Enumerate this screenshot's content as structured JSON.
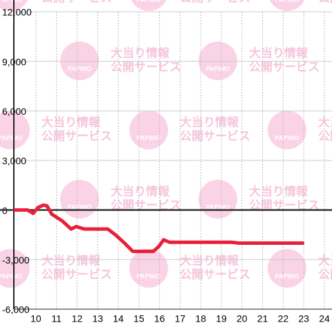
{
  "chart_data": {
    "type": "line",
    "watermark": {
      "lines": [
        "大当り情報",
        "公開サービス"
      ],
      "logo": "PAPIMO"
    },
    "x": [
      8.93,
      9.6,
      9.87,
      10.1,
      10.37,
      10.54,
      10.77,
      11.27,
      11.71,
      11.95,
      12.35,
      13.49,
      13.86,
      14.3,
      14.7,
      15.7,
      15.97,
      16.2,
      16.48,
      19.5,
      19.83,
      23.02
    ],
    "series": [
      {
        "color": "#e8213a",
        "values": [
          0,
          0,
          -200,
          150,
          300,
          250,
          -250,
          -650,
          -1150,
          -1000,
          -1150,
          -1150,
          -1500,
          -2000,
          -2500,
          -2500,
          -2200,
          -1800,
          -1950,
          -1950,
          -2000,
          -2000
        ]
      }
    ],
    "xlim": [
      8.93,
      24.37
    ],
    "xticks": [
      10,
      11,
      12,
      13,
      14,
      15,
      16,
      17,
      18,
      19,
      20,
      21,
      22,
      23,
      24
    ],
    "ylim": [
      -6000,
      12000
    ],
    "yticks": [
      {
        "value": -6000,
        "label": "-6,000"
      },
      {
        "value": -3000,
        "label": "-3,000"
      },
      0,
      {
        "value": 3000,
        "label": "3,000"
      },
      {
        "value": 6000,
        "label": "6,000"
      },
      {
        "value": 9000,
        "label": "9,000"
      },
      {
        "value": 12000,
        "label": "12,000"
      }
    ],
    "grid": true
  }
}
